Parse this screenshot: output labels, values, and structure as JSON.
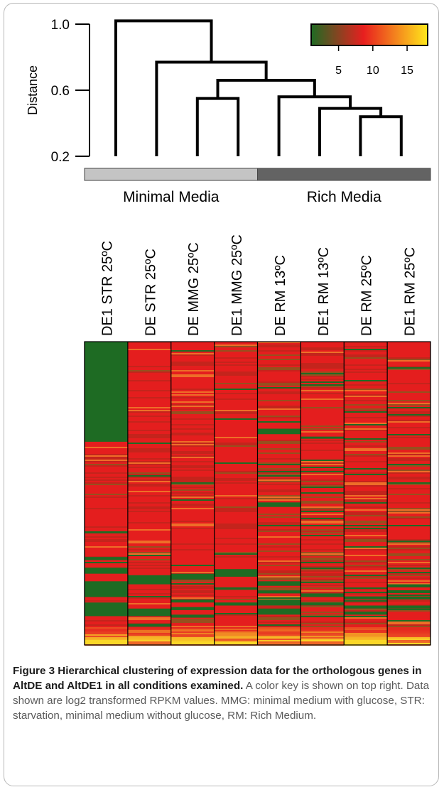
{
  "chart_data": {
    "type": "heatmap",
    "title": "",
    "samples": [
      "DE1 STR 25ºC",
      "DE STR 25ºC",
      "DE MMG 25ºC",
      "DE1 MMG 25ºC",
      "DE RM 13ºC",
      "DE1 RM 13ºC",
      "DE RM 25ºC",
      "DE1 RM 25ºC"
    ],
    "dendrogram": {
      "ylabel": "Distance",
      "yticks": [
        1.0,
        0.6,
        0.2
      ],
      "ytick_labels": [
        "1.0",
        "0.6",
        "0.2"
      ],
      "ylim": [
        0.2,
        1.0
      ],
      "merges": [
        {
          "left": 2,
          "right": 3,
          "height": 0.55
        },
        {
          "left": 6,
          "right": 7,
          "height": 0.44
        },
        {
          "left": 5,
          "right": "m2",
          "height": 0.49
        },
        {
          "left": 4,
          "right": "m3",
          "height": 0.56
        },
        {
          "left": "m1",
          "right": "m4",
          "height": 0.66
        },
        {
          "left": 1,
          "right": "m5",
          "height": 0.77
        },
        {
          "left": 0,
          "right": "m6",
          "height": 1.02
        }
      ]
    },
    "groups": [
      {
        "label": "Minimal Media",
        "samples": [
          0,
          1,
          2,
          3
        ],
        "color": "#c4c4c4"
      },
      {
        "label": "Rich Media",
        "samples": [
          4,
          5,
          6,
          7
        ],
        "color": "#636363"
      }
    ],
    "color_key": {
      "min": 1,
      "max": 18,
      "ticks": [
        5,
        10,
        15
      ],
      "tick_labels": [
        "5",
        "10",
        "15"
      ],
      "colors": [
        "#1e6b23",
        "#e81f1f",
        "#ffe81c"
      ]
    },
    "heatmap_summary": {
      "value_type": "log2 transformed RPKM",
      "green_low_blocks": [
        [
          [
            0.0,
            0.33
          ],
          [
            0.625,
            0.632
          ],
          [
            0.71,
            0.72
          ],
          [
            0.745,
            0.765
          ],
          [
            0.79,
            0.842
          ],
          [
            0.86,
            0.905
          ]
        ],
        [
          [
            0.77,
            0.8
          ],
          [
            0.88,
            0.905
          ],
          [
            0.93,
            0.94
          ]
        ],
        [
          [
            0.765,
            0.785
          ],
          [
            0.85,
            0.86
          ],
          [
            0.875,
            0.885
          ],
          [
            0.9,
            0.91
          ]
        ],
        [
          [
            0.75,
            0.775
          ],
          [
            0.81,
            0.818
          ],
          [
            0.86,
            0.87
          ]
        ],
        [
          [
            0.287,
            0.305
          ],
          [
            0.53,
            0.545
          ],
          [
            0.79,
            0.805
          ],
          [
            0.82,
            0.83
          ],
          [
            0.85,
            0.87
          ],
          [
            0.88,
            0.9
          ]
        ],
        [
          [
            0.313,
            0.32
          ],
          [
            0.83,
            0.842
          ],
          [
            0.86,
            0.87
          ]
        ],
        [
          [
            0.84,
            0.85
          ],
          [
            0.87,
            0.88
          ],
          [
            0.89,
            0.9
          ]
        ],
        [
          [
            0.8,
            0.81
          ],
          [
            0.84,
            0.85
          ],
          [
            0.87,
            0.88
          ]
        ]
      ],
      "bottom_yellow_fraction": 0.06
    }
  },
  "caption": {
    "head": "Figure 3 Hierarchical clustering of expression data for the orthologous genes in AltDE and AltDE1 in all conditions examined.",
    "body": " A color key is shown on top right. Data shown are log2 transformed RPKM values. MMG: minimal medium with glucose, STR: starvation, minimal medium without glucose, RM: Rich Medium."
  }
}
